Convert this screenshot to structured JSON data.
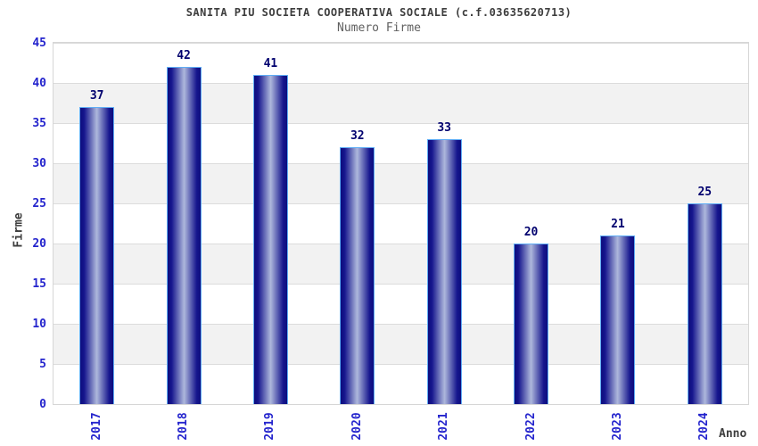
{
  "chart_data": {
    "type": "bar",
    "title": "SANITA PIU SOCIETA COOPERATIVA SOCIALE (c.f.03635620713)",
    "subtitle": "Numero Firme",
    "categories": [
      "2017",
      "2018",
      "2019",
      "2020",
      "2021",
      "2022",
      "2023",
      "2024"
    ],
    "values": [
      37,
      42,
      41,
      32,
      33,
      20,
      21,
      25
    ],
    "xlabel": "Anno",
    "ylabel": "Firme",
    "ylim": [
      0,
      45
    ],
    "ytick_step": 5,
    "yticks": [
      0,
      5,
      10,
      15,
      20,
      25,
      30,
      35,
      40,
      45
    ],
    "grid": "horizontal alternating bands every 5 units",
    "legend": "none",
    "colors": {
      "bar_edge_dark": "#0d0d7d",
      "bar_center_light": "#aeb8dc",
      "bar_border": "#5fadf5",
      "value_label": "#00006e",
      "tick_label": "#2424cd",
      "axis_title": "#3d3d3d",
      "title": "#3d3d3d",
      "subtitle": "#606060",
      "band_gray": "#f2f2f2",
      "gridline": "#dcdcdc",
      "plot_border": "#d6d6d6",
      "background": "#ffffff"
    }
  }
}
